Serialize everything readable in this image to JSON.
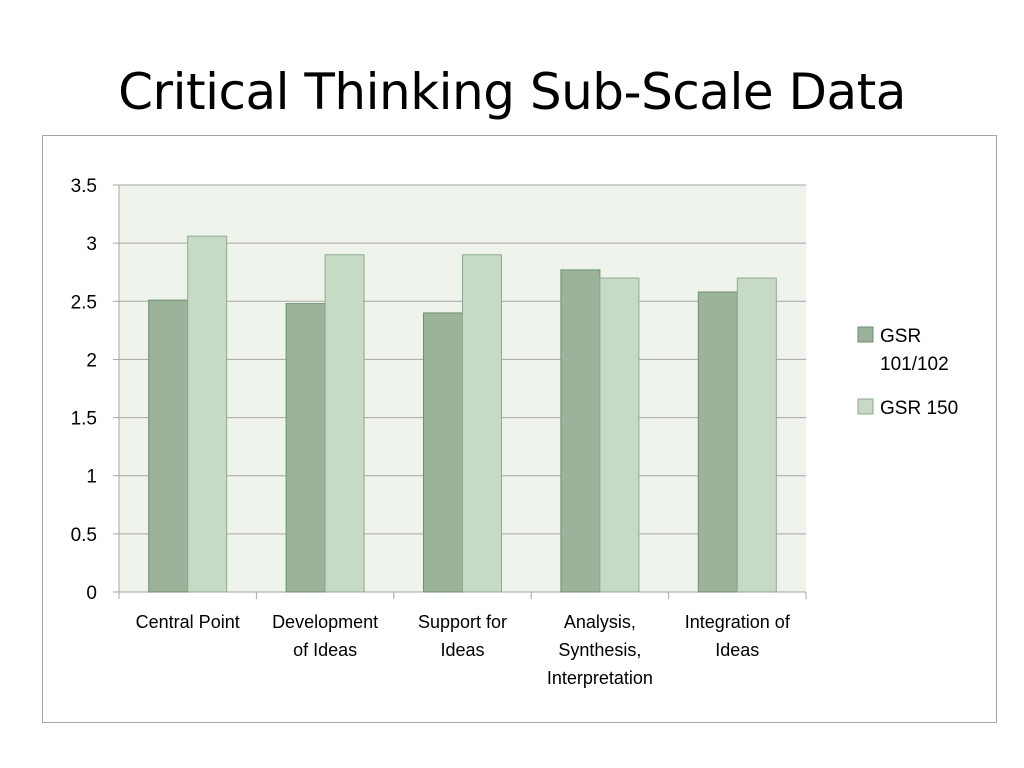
{
  "slide": {
    "title": "Critical Thinking Sub-Scale Data"
  },
  "colors": {
    "plot_background": "#eef4ec",
    "gridline": "#a6a6a6",
    "series_1": "#9bb39b",
    "series_1_border": "#6f8f6f",
    "series_2": "#c6dac6",
    "series_2_border": "#8faa8f"
  },
  "chart_data": {
    "type": "bar",
    "title": "",
    "xlabel": "",
    "ylabel": "",
    "ylim": [
      0,
      3.5
    ],
    "yticks": [
      "0",
      "0.5",
      "1",
      "1.5",
      "2",
      "2.5",
      "3",
      "3.5"
    ],
    "grid": true,
    "legend_position": "right",
    "categories": [
      [
        "Central Point"
      ],
      [
        "Development",
        "of Ideas"
      ],
      [
        "Support for",
        "Ideas"
      ],
      [
        "Analysis,",
        "Synthesis,",
        "Interpretation"
      ],
      [
        "Integration of",
        "Ideas"
      ]
    ],
    "series": [
      {
        "name": "GSR 101/102",
        "legend_lines": [
          "GSR",
          "101/102"
        ],
        "values": [
          2.51,
          2.48,
          2.4,
          2.77,
          2.58
        ]
      },
      {
        "name": "GSR 150",
        "legend_lines": [
          "GSR 150"
        ],
        "values": [
          3.06,
          2.9,
          2.9,
          2.7,
          2.7
        ]
      }
    ]
  }
}
